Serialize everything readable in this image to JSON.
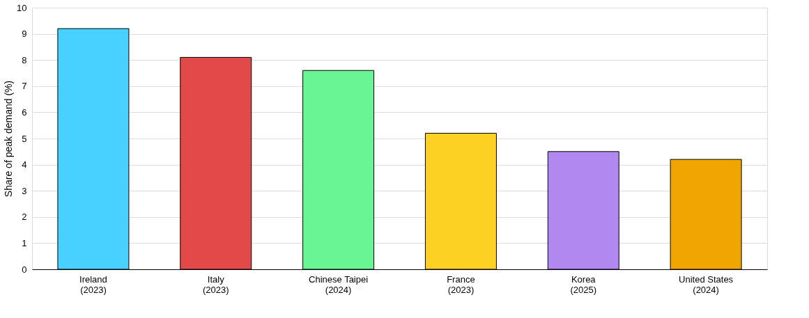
{
  "chart_data": {
    "type": "bar",
    "ylabel": "Share of peak demand (%)",
    "categories": [
      "Ireland\n(2023)",
      "Italy\n(2023)",
      "Chinese Taipei\n(2024)",
      "France\n(2023)",
      "Korea\n(2025)",
      "United States\n(2024)"
    ],
    "values": [
      9.2,
      8.1,
      7.6,
      5.2,
      4.5,
      4.2
    ],
    "colors": [
      "#48d1ff",
      "#e24a4a",
      "#6af595",
      "#fcd124",
      "#b088f0",
      "#f0a500"
    ],
    "ylim": [
      0,
      10
    ],
    "yticks": [
      0,
      1,
      2,
      3,
      4,
      5,
      6,
      7,
      8,
      9,
      10
    ],
    "grid": "y"
  }
}
